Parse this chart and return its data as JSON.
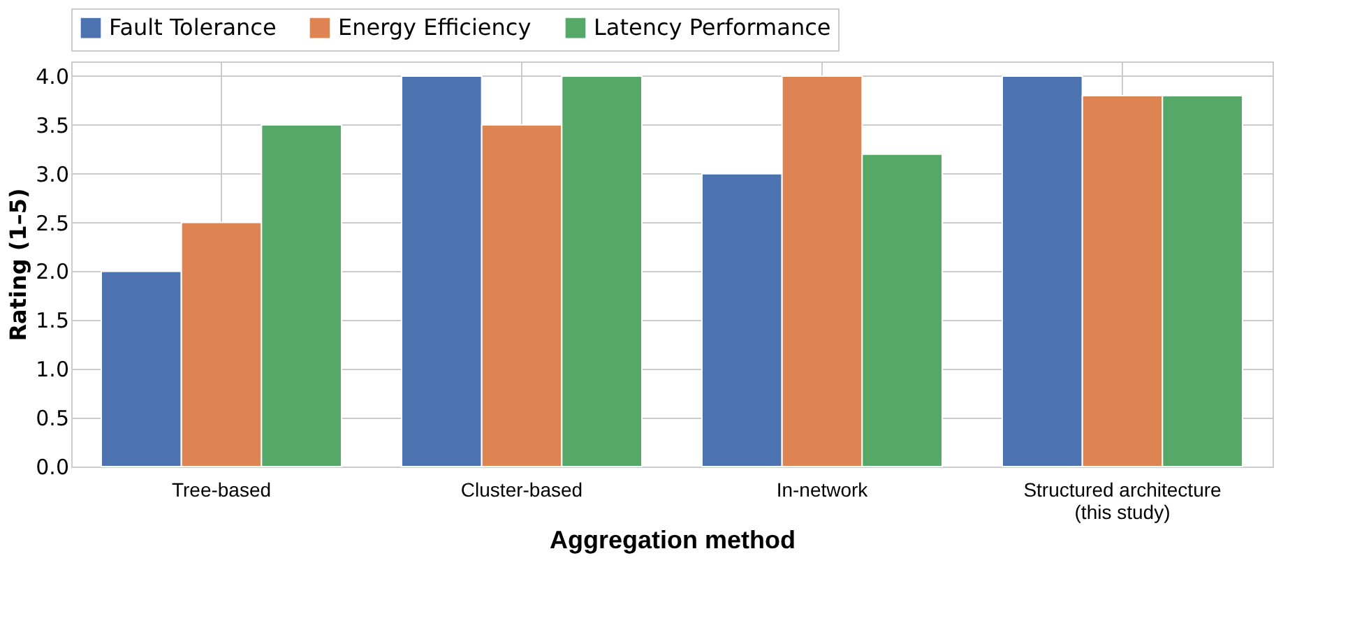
{
  "chart_data": {
    "type": "bar",
    "xlabel": "Aggregation method",
    "ylabel": "Rating (1–5)",
    "categories": [
      "Tree-based",
      "Cluster-based",
      "In-network",
      "Structured architecture\n(this study)"
    ],
    "series": [
      {
        "name": "Fault Tolerance",
        "color": "#4c72b0",
        "values": [
          2.0,
          4.0,
          3.0,
          4.0
        ]
      },
      {
        "name": "Energy Efficiency",
        "color": "#dd8452",
        "values": [
          2.5,
          3.5,
          4.0,
          3.8
        ]
      },
      {
        "name": "Latency Performance",
        "color": "#55a868",
        "values": [
          3.5,
          4.0,
          3.2,
          3.8
        ]
      }
    ],
    "ylim": [
      0,
      4.15
    ],
    "yticks": [
      {
        "value": 0,
        "label": "0.0"
      },
      0.5,
      {
        "value": 1,
        "label": "1.0"
      },
      1.5,
      {
        "value": 2,
        "label": "2.0"
      },
      2.5,
      {
        "value": 3,
        "label": "3.0"
      },
      3.5,
      {
        "value": 4,
        "label": "4.0"
      }
    ],
    "grid": true,
    "legend": "top"
  }
}
